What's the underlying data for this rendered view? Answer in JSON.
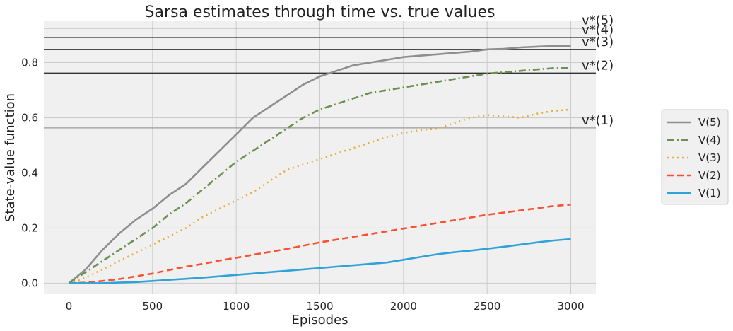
{
  "chart_data": {
    "type": "line",
    "title": "Sarsa estimates through time vs. true values",
    "xlabel": "Episodes",
    "ylabel": "State-value function",
    "xlim": [
      -150,
      3150
    ],
    "ylim": [
      -0.04,
      0.95
    ],
    "xticks": [
      0,
      500,
      1000,
      1500,
      2000,
      2500,
      3000
    ],
    "yticks": [
      0.0,
      0.2,
      0.4,
      0.6,
      0.8
    ],
    "xtick_labels": [
      "0",
      "500",
      "1000",
      "1500",
      "2000",
      "2500",
      "3000"
    ],
    "ytick_labels": [
      "0.0",
      "0.2",
      "0.4",
      "0.6",
      "0.8"
    ],
    "grid": true,
    "background": "#f0f0f0",
    "legend_position": "outside-right",
    "reference_lines": [
      {
        "label": "v*(5)",
        "value": 0.925,
        "color": "#9a9a9a"
      },
      {
        "label": "v*(4)",
        "value": 0.891,
        "color": "#333333"
      },
      {
        "label": "v*(3)",
        "value": 0.848,
        "color": "#333333"
      },
      {
        "label": "v*(2)",
        "value": 0.762,
        "color": "#333333"
      },
      {
        "label": "v*(1)",
        "value": 0.563,
        "color": "#9a9a9a"
      }
    ],
    "series": [
      {
        "name": "V(5)",
        "color": "#8e8e8e",
        "dash": "solid",
        "x": [
          0,
          100,
          200,
          300,
          400,
          500,
          600,
          700,
          800,
          900,
          1000,
          1100,
          1200,
          1300,
          1400,
          1500,
          1600,
          1700,
          1800,
          1900,
          2000,
          2100,
          2200,
          2300,
          2400,
          2500,
          2600,
          2700,
          2800,
          2900,
          3000
        ],
        "values": [
          0.0,
          0.05,
          0.12,
          0.18,
          0.23,
          0.27,
          0.32,
          0.36,
          0.42,
          0.48,
          0.54,
          0.6,
          0.64,
          0.68,
          0.72,
          0.75,
          0.77,
          0.79,
          0.8,
          0.81,
          0.82,
          0.825,
          0.83,
          0.835,
          0.84,
          0.848,
          0.85,
          0.855,
          0.858,
          0.86,
          0.86
        ]
      },
      {
        "name": "V(4)",
        "color": "#6d904f",
        "dash": "dashdot",
        "x": [
          0,
          100,
          200,
          300,
          400,
          500,
          600,
          700,
          800,
          900,
          1000,
          1100,
          1200,
          1300,
          1400,
          1500,
          1600,
          1700,
          1800,
          1900,
          2000,
          2100,
          2200,
          2300,
          2400,
          2500,
          2600,
          2700,
          2800,
          2900,
          3000
        ],
        "values": [
          0.0,
          0.04,
          0.08,
          0.12,
          0.16,
          0.2,
          0.25,
          0.29,
          0.34,
          0.39,
          0.44,
          0.48,
          0.52,
          0.56,
          0.6,
          0.63,
          0.65,
          0.67,
          0.69,
          0.7,
          0.71,
          0.72,
          0.73,
          0.74,
          0.75,
          0.76,
          0.765,
          0.77,
          0.775,
          0.78,
          0.78
        ]
      },
      {
        "name": "V(3)",
        "color": "#e5ae38",
        "dash": "dotted",
        "x": [
          0,
          100,
          200,
          300,
          400,
          500,
          600,
          700,
          800,
          900,
          1000,
          1100,
          1200,
          1300,
          1400,
          1500,
          1600,
          1700,
          1800,
          1900,
          2000,
          2100,
          2200,
          2300,
          2400,
          2500,
          2600,
          2700,
          2800,
          2900,
          3000
        ],
        "values": [
          0.0,
          0.02,
          0.05,
          0.08,
          0.11,
          0.14,
          0.17,
          0.2,
          0.24,
          0.27,
          0.3,
          0.33,
          0.37,
          0.41,
          0.43,
          0.45,
          0.47,
          0.49,
          0.51,
          0.53,
          0.545,
          0.555,
          0.56,
          0.58,
          0.6,
          0.61,
          0.605,
          0.6,
          0.615,
          0.625,
          0.63
        ]
      },
      {
        "name": "V(2)",
        "color": "#fc4f30",
        "dash": "dashed",
        "x": [
          0,
          100,
          200,
          300,
          400,
          500,
          600,
          700,
          800,
          900,
          1000,
          1100,
          1200,
          1300,
          1400,
          1500,
          1600,
          1700,
          1800,
          1900,
          2000,
          2100,
          2200,
          2300,
          2400,
          2500,
          2600,
          2700,
          2800,
          2900,
          3000
        ],
        "values": [
          0.0,
          0.002,
          0.008,
          0.015,
          0.025,
          0.035,
          0.048,
          0.06,
          0.07,
          0.082,
          0.092,
          0.103,
          0.113,
          0.124,
          0.136,
          0.148,
          0.158,
          0.168,
          0.178,
          0.188,
          0.198,
          0.208,
          0.218,
          0.228,
          0.238,
          0.248,
          0.256,
          0.264,
          0.272,
          0.28,
          0.285
        ]
      },
      {
        "name": "V(1)",
        "color": "#30a2da",
        "dash": "solid",
        "x": [
          0,
          100,
          200,
          300,
          400,
          500,
          600,
          700,
          800,
          900,
          1000,
          1100,
          1200,
          1300,
          1400,
          1500,
          1600,
          1700,
          1800,
          1900,
          2000,
          2100,
          2200,
          2300,
          2400,
          2500,
          2600,
          2700,
          2800,
          2900,
          3000
        ],
        "values": [
          0.0,
          0.0,
          0.0,
          0.002,
          0.004,
          0.008,
          0.012,
          0.016,
          0.02,
          0.025,
          0.03,
          0.035,
          0.04,
          0.045,
          0.05,
          0.055,
          0.06,
          0.065,
          0.07,
          0.075,
          0.085,
          0.095,
          0.105,
          0.112,
          0.118,
          0.125,
          0.132,
          0.14,
          0.148,
          0.155,
          0.16
        ]
      }
    ],
    "legend_order": [
      "V(5)",
      "V(4)",
      "V(3)",
      "V(2)",
      "V(1)"
    ]
  }
}
